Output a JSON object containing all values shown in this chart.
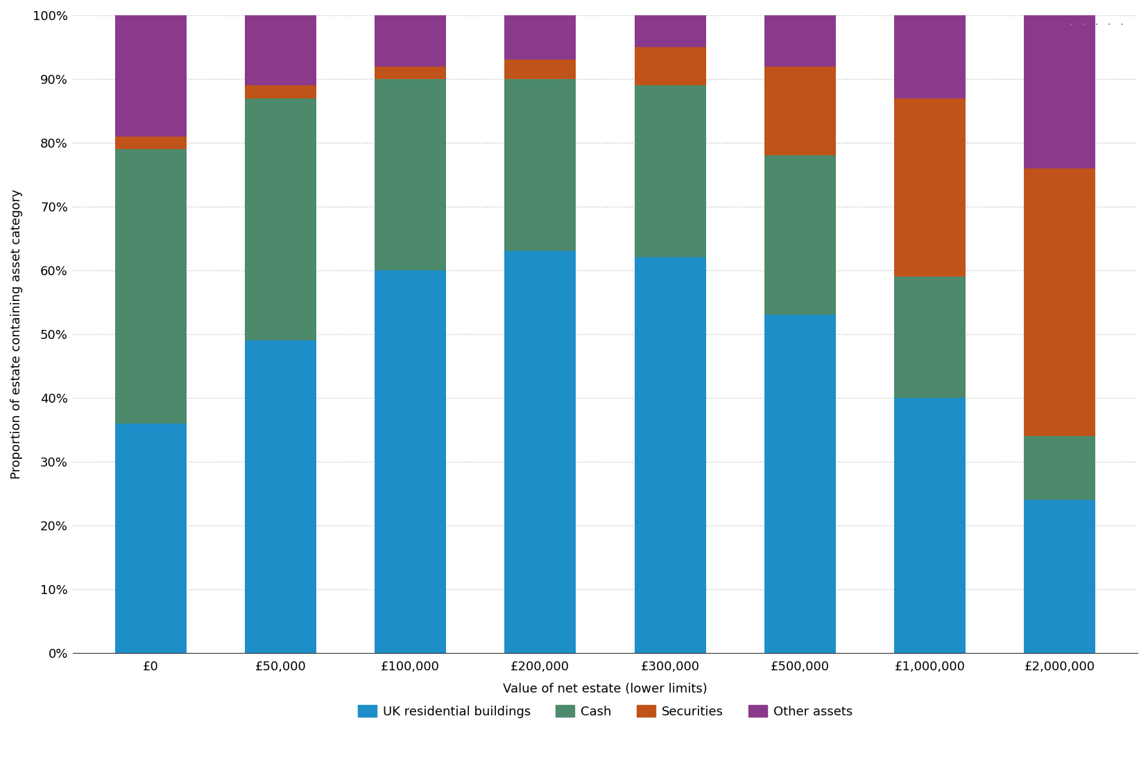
{
  "categories": [
    "£0",
    "£50,000",
    "£100,000",
    "£200,000",
    "£300,000",
    "£500,000",
    "£1,000,000",
    "£2,000,000"
  ],
  "series": {
    "UK residential buildings": [
      36,
      49,
      60,
      63,
      62,
      53,
      40,
      24
    ],
    "Cash": [
      43,
      38,
      30,
      27,
      27,
      25,
      19,
      10
    ],
    "Securities": [
      2,
      2,
      2,
      3,
      6,
      14,
      28,
      42
    ],
    "Other assets": [
      19,
      11,
      8,
      7,
      5,
      8,
      13,
      24
    ]
  },
  "colors": {
    "UK residential buildings": "#1e8ec9",
    "Cash": "#4d8a6b",
    "Securities": "#c0531a",
    "Other assets": "#8b3a8b"
  },
  "ylabel": "Proportion of estate containing asset category",
  "xlabel": "Value of net estate (lower limits)",
  "ylim": [
    0,
    100
  ],
  "ytick_labels": [
    "0%",
    "10%",
    "20%",
    "30%",
    "40%",
    "50%",
    "60%",
    "70%",
    "80%",
    "90%",
    "100%"
  ],
  "ytick_values": [
    0,
    10,
    20,
    30,
    40,
    50,
    60,
    70,
    80,
    90,
    100
  ],
  "legend_labels": [
    "UK residential buildings",
    "Cash",
    "Securities",
    "Other assets"
  ],
  "bar_width": 0.55,
  "background_color": "#ffffff",
  "grid_color": "#bbbbbb",
  "dots_color": "#888888"
}
